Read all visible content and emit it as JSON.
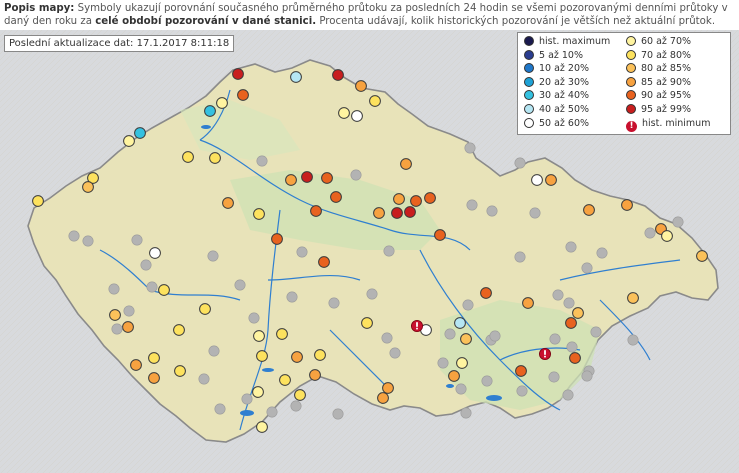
{
  "description": {
    "lead": "Popis mapy:",
    "text1": "Symboly ukazují porovnání současného průměrného průtoku za posledních 24 hodin se všemi pozorovanými denními průtoky v daný den roku za",
    "bold": "celé období pozorování v dané stanici.",
    "text2": "Procenta udávají, kolik historických pozorování je větších než aktuální průtok."
  },
  "last_update": "Poslední aktualizace dat: 17.1.2017 8:11:18",
  "colors": {
    "hist_max": "#1a1a4e",
    "p5_10": "#2a3d8f",
    "p10_20": "#1f77c9",
    "p20_30": "#1ea2d6",
    "p30_40": "#35c1e0",
    "p40_50": "#b5e6f3",
    "p50_60": "#ffffff",
    "p60_70": "#fff4a0",
    "p70_80": "#fde25e",
    "p80_85": "#fbc15a",
    "p85_90": "#f7a240",
    "p90_95": "#e8621f",
    "p95_99": "#c81e1e",
    "hist_min": "#c8102e",
    "no_data": "#b3b3b3",
    "land": "#e6e2b8",
    "lowland": "#cfe3b5",
    "rivers": "#2f7fd0"
  },
  "legend": [
    {
      "key": "hist_max",
      "label": "hist. maximum",
      "icon": "dot"
    },
    {
      "key": "p60_70",
      "label": "60 až 70%",
      "icon": "dot"
    },
    {
      "key": "p5_10",
      "label": "5 až 10%",
      "icon": "dot"
    },
    {
      "key": "p70_80",
      "label": "70 až 80%",
      "icon": "dot"
    },
    {
      "key": "p10_20",
      "label": "10 až 20%",
      "icon": "dot"
    },
    {
      "key": "p80_85",
      "label": "80 až 85%",
      "icon": "dot"
    },
    {
      "key": "p20_30",
      "label": "20 až 30%",
      "icon": "dot"
    },
    {
      "key": "p85_90",
      "label": "85 až 90%",
      "icon": "dot"
    },
    {
      "key": "p30_40",
      "label": "30 až 40%",
      "icon": "dot"
    },
    {
      "key": "p90_95",
      "label": "90 až 95%",
      "icon": "dot"
    },
    {
      "key": "p40_50",
      "label": "40 až 50%",
      "icon": "dot"
    },
    {
      "key": "p95_99",
      "label": "95 až 99%",
      "icon": "dot"
    },
    {
      "key": "p50_60",
      "label": "50 až 60%",
      "icon": "dot"
    },
    {
      "key": "hist_min",
      "label": "hist. minimum",
      "icon": "exclamation-icon"
    }
  ]
}
